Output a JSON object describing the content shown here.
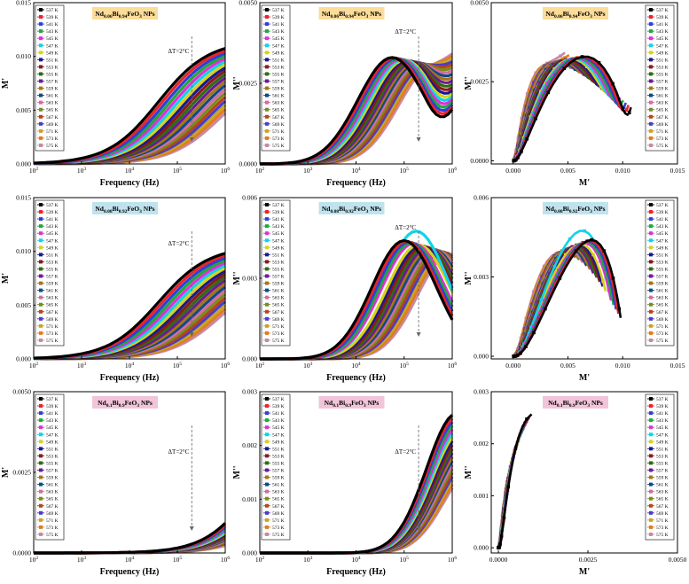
{
  "figure": {
    "temperatures": [
      "537 K",
      "539 K",
      "541 K",
      "543 K",
      "545 K",
      "547 K",
      "549 K",
      "551 K",
      "553 K",
      "555 K",
      "557 K",
      "559 K",
      "561 K",
      "563 K",
      "565 K",
      "567 K",
      "569 K",
      "571 K",
      "573 K",
      "575 K"
    ],
    "series_colors": [
      "#000000",
      "#e8242b",
      "#2f3fd8",
      "#1fa83a",
      "#e02fd6",
      "#13d2e6",
      "#d8d21a",
      "#1a1a8f",
      "#8a1a1a",
      "#2e6b12",
      "#6a1a9a",
      "#a8750f",
      "#0f4a8a",
      "#d76a9f",
      "#7a8a20",
      "#b5441a",
      "#4a3cc8",
      "#c4a62a",
      "#e57a1a",
      "#c48aa8"
    ],
    "annotation": "ΔT=2°C"
  },
  "chart_data": [
    {
      "id": "p1",
      "type": "line",
      "title": "Nd0.06Bi0.94FeO3 NPs",
      "title_bg": "#fbdc99",
      "xlabel": "Frequency (Hz)",
      "ylabel": "M'",
      "xscale": "log",
      "xlim": [
        100,
        1000000
      ],
      "ylim": [
        0,
        0.015
      ],
      "yticks": [
        "0.000",
        "0.005",
        "0.010",
        "0.015"
      ],
      "xticks": [
        "10^2",
        "10^3",
        "10^4",
        "10^5",
        "10^6"
      ],
      "annotation": "ΔT=2°C",
      "legend": "top-left",
      "legend_dx": 0
    },
    {
      "id": "p2",
      "type": "line",
      "title": "Nd0.06Bi0.94FeO3 NPs",
      "title_bg": "#fbdc99",
      "xlabel": "Frequency (Hz)",
      "ylabel": "M''",
      "xscale": "log",
      "xlim": [
        100,
        1000000
      ],
      "ylim": [
        0,
        0.005
      ],
      "yticks": [
        "0.0000",
        "0.0025",
        "0.0050"
      ],
      "xticks": [
        "10^2",
        "10^3",
        "10^4",
        "10^5",
        "10^6"
      ],
      "annotation": "ΔT=2°C",
      "legend": "top-left",
      "legend_dx": 0
    },
    {
      "id": "p3",
      "type": "scatter",
      "title": "Nd0.06Bi0.94FeO3 NPs",
      "title_bg": "#fbdc99",
      "xlabel": "M'",
      "ylabel": "M''",
      "xscale": "linear",
      "xlim": [
        -0.002,
        0.015
      ],
      "ylim": [
        -0.0001,
        0.005
      ],
      "yticks": [
        "0.0000",
        "0.0025",
        "0.0050"
      ],
      "yticks_vals": [
        0,
        0.0025,
        0.005
      ],
      "xticks": [
        "0.000",
        "0.005",
        "0.010",
        "0.015"
      ],
      "xticks_vals": [
        0,
        0.005,
        0.01,
        0.015
      ],
      "legend": "top-right",
      "legend_dx": 0
    },
    {
      "id": "p4",
      "type": "line",
      "title": "Nd0.08Bi0.92FeO3 NPs",
      "title_bg": "#bfe3ee",
      "xlabel": "Frequency (Hz)",
      "ylabel": "M'",
      "xscale": "log",
      "xlim": [
        100,
        1000000
      ],
      "ylim": [
        0,
        0.015
      ],
      "yticks": [
        "0.000",
        "0.005",
        "0.010",
        "0.015"
      ],
      "xticks": [
        "10^2",
        "10^3",
        "10^4",
        "10^5",
        "10^6"
      ],
      "annotation": "ΔT=2°C",
      "legend": "top-left",
      "legend_dx": 0
    },
    {
      "id": "p5",
      "type": "line",
      "title": "Nd0.08Bi0.92FeO3 NPs",
      "title_bg": "#bfe3ee",
      "xlabel": "Frequency (Hz)",
      "ylabel": "M''",
      "xscale": "log",
      "xlim": [
        100,
        1000000
      ],
      "ylim": [
        0,
        0.006
      ],
      "yticks": [
        "0.000",
        "0.003",
        "0.006"
      ],
      "xticks": [
        "10^2",
        "10^3",
        "10^4",
        "10^5",
        "10^6"
      ],
      "annotation": "ΔT=2°C",
      "legend": "top-left",
      "legend_dx": 0
    },
    {
      "id": "p6",
      "type": "scatter",
      "title": "Nd0.08Bi0.92FeO3 NPs",
      "title_bg": "#bfe3ee",
      "xlabel": "M'",
      "ylabel": "M''",
      "xscale": "linear",
      "xlim": [
        -0.002,
        0.015
      ],
      "ylim": [
        -0.0001,
        0.006
      ],
      "yticks": [
        "0.000",
        "0.003",
        "0.006"
      ],
      "yticks_vals": [
        0,
        0.003,
        0.006
      ],
      "xticks": [
        "0.000",
        "0.005",
        "0.010",
        "0.015"
      ],
      "xticks_vals": [
        0,
        0.005,
        0.01,
        0.015
      ],
      "legend": "top-right",
      "legend_dx": 0
    },
    {
      "id": "p7",
      "type": "line",
      "title": "Nd0.1Bi0.9FeO3 NPs",
      "title_bg": "#f2c4d9",
      "xlabel": "Frequency (Hz)",
      "ylabel": "M'",
      "xscale": "log",
      "xlim": [
        100,
        1000000
      ],
      "ylim": [
        0,
        0.005
      ],
      "yticks": [
        "0.0000",
        "0.0025",
        "0.0050"
      ],
      "xticks": [
        "10^2",
        "10^3",
        "10^4",
        "10^5",
        "10^6"
      ],
      "annotation": "ΔT=2°C",
      "legend": "top-left",
      "legend_dx": 0
    },
    {
      "id": "p8",
      "type": "line",
      "title": "Nd0.1Bi0.9FeO3 NPs",
      "title_bg": "#f2c4d9",
      "xlabel": "Frequency (Hz)",
      "ylabel": "M''",
      "xscale": "log",
      "xlim": [
        100,
        1000000
      ],
      "ylim": [
        0,
        0.003
      ],
      "yticks": [
        "0.000",
        "0.001",
        "0.002",
        "0.003"
      ],
      "xticks": [
        "10^2",
        "10^3",
        "10^4",
        "10^5",
        "10^6"
      ],
      "annotation": "ΔT=2°C",
      "legend": "top-left",
      "legend_dx": 0
    },
    {
      "id": "p9",
      "type": "scatter",
      "title": "Nd0.1Bi0.9FeO3 NPs",
      "title_bg": "#f2c4d9",
      "xlabel": "M'",
      "ylabel": "M''",
      "xscale": "linear",
      "xlim": [
        -0.0002,
        0.005
      ],
      "ylim": [
        -0.0001,
        0.003
      ],
      "yticks": [
        "0.000",
        "0.001",
        "0.002",
        "0.003"
      ],
      "yticks_vals": [
        0,
        0.001,
        0.002,
        0.003
      ],
      "xticks": [
        "0.0000",
        "0.0025",
        "0.0050"
      ],
      "xticks_vals": [
        0,
        0.0025,
        0.005
      ],
      "legend": "top-right",
      "legend_dx": 0
    }
  ]
}
